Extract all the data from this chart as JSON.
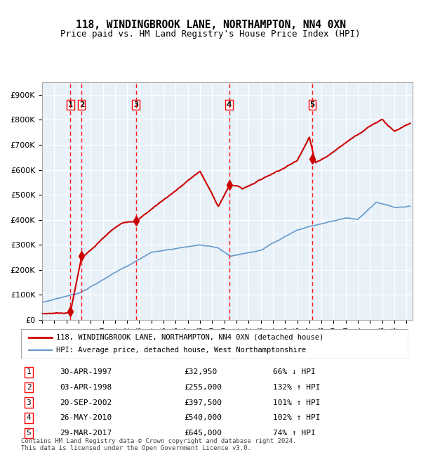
{
  "title": "118, WINDINGBROOK LANE, NORTHAMPTON, NN4 0XN",
  "subtitle": "Price paid vs. HM Land Registry's House Price Index (HPI)",
  "transactions": [
    {
      "num": 1,
      "date": 1997.33,
      "price": 32950,
      "label": "30-APR-1997",
      "price_str": "£32,950",
      "hpi_pct": "66% ↓ HPI"
    },
    {
      "num": 2,
      "date": 1998.25,
      "price": 255000,
      "label": "03-APR-1998",
      "price_str": "£255,000",
      "hpi_pct": "132% ↑ HPI"
    },
    {
      "num": 3,
      "date": 2002.72,
      "price": 397500,
      "label": "20-SEP-2002",
      "price_str": "£397,500",
      "hpi_pct": "101% ↑ HPI"
    },
    {
      "num": 4,
      "date": 2010.4,
      "price": 540000,
      "label": "26-MAY-2010",
      "price_str": "£540,000",
      "hpi_pct": "102% ↑ HPI"
    },
    {
      "num": 5,
      "date": 2017.24,
      "price": 645000,
      "label": "29-MAR-2017",
      "price_str": "£645,000",
      "hpi_pct": "74% ↑ HPI"
    }
  ],
  "red_line_color": "#cc0000",
  "blue_line_color": "#6699cc",
  "bg_color": "#e8f0f8",
  "grid_color": "#ffffff",
  "footer": "Contains HM Land Registry data © Crown copyright and database right 2024.\nThis data is licensed under the Open Government Licence v3.0.",
  "legend_line1": "118, WINDINGBROOK LANE, NORTHAMPTON, NN4 0XN (detached house)",
  "legend_line2": "HPI: Average price, detached house, West Northamptonshire",
  "ylim": [
    0,
    950000
  ],
  "xlim": [
    1995,
    2025.5
  ]
}
